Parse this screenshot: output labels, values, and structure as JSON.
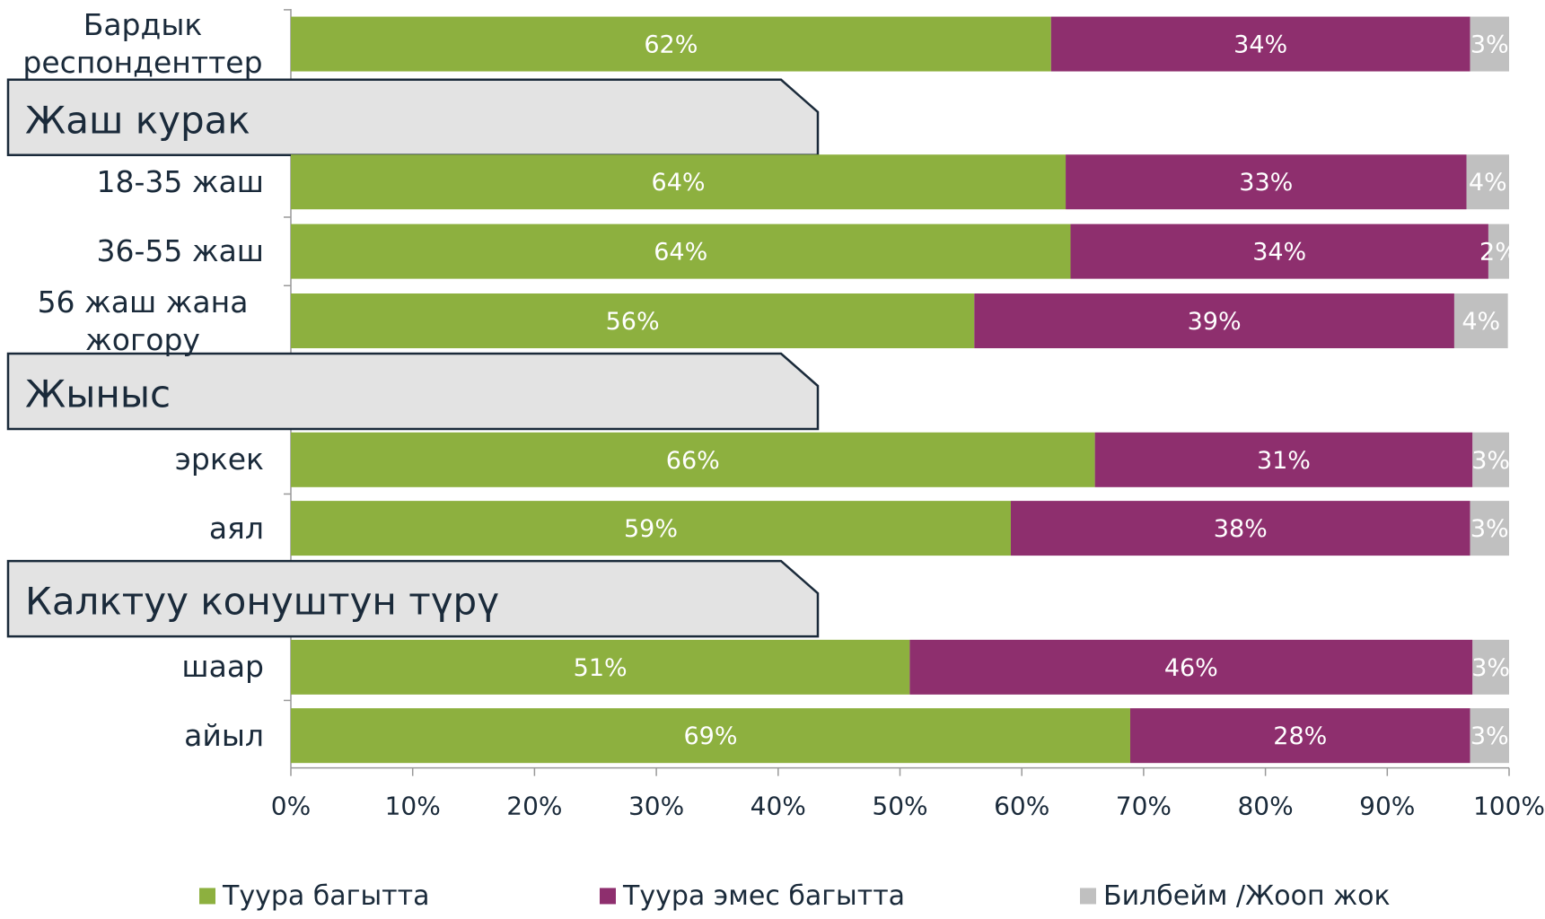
{
  "chart_data": {
    "type": "stacked_bar_horizontal",
    "categories": [
      "Бардык респонденттер",
      "Жаш курак",
      "18-35 жаш",
      "36-55 жаш",
      "56 жаш жана жогору",
      "Жыныс",
      "эркек",
      "аял",
      "Калктуу конуштун түрү",
      "шаар",
      "айыл"
    ],
    "series": [
      {
        "name": "Туура багытта",
        "color": "#8db03f",
        "values": [
          62.4,
          null,
          63.6,
          64.0,
          56.1,
          null,
          66.0,
          59.1,
          null,
          50.8,
          68.9
        ],
        "value_labels": [
          "62%",
          null,
          "64%",
          "64%",
          "56%",
          null,
          "66%",
          "59%",
          null,
          "51%",
          "69%"
        ]
      },
      {
        "name": "Туура эмес багытта",
        "color": "#8e2f6e",
        "values": [
          34.4,
          null,
          32.9,
          34.3,
          39.4,
          null,
          31.0,
          37.7,
          null,
          46.2,
          27.9
        ],
        "value_labels": [
          "34%",
          null,
          "33%",
          "34%",
          "39%",
          null,
          "31%",
          "38%",
          null,
          "46%",
          "28%"
        ]
      },
      {
        "name": "Билбейм /Жооп жок",
        "color": "#c0c0c0",
        "values": [
          3.2,
          null,
          3.5,
          1.7,
          4.4,
          null,
          3.0,
          3.2,
          null,
          3.0,
          3.2
        ],
        "value_labels": [
          "3%",
          null,
          "4%",
          "2%",
          "4%",
          null,
          "3%",
          "3%",
          null,
          "3%",
          "3%"
        ]
      }
    ],
    "xlim": [
      0,
      100
    ],
    "xticks": [
      {
        "value": 0,
        "label": "0%"
      },
      {
        "value": 10,
        "label": "10%"
      },
      {
        "value": 20,
        "label": "20%"
      },
      {
        "value": 30,
        "label": "30%"
      },
      {
        "value": 40,
        "label": "40%"
      },
      {
        "value": 50,
        "label": "50%"
      },
      {
        "value": 60,
        "label": "60%"
      },
      {
        "value": 70,
        "label": "70%"
      },
      {
        "value": 80,
        "label": "80%"
      },
      {
        "value": 90,
        "label": "90%"
      },
      {
        "value": 100,
        "label": "100%"
      }
    ],
    "legend": "bottom",
    "grid": false
  }
}
